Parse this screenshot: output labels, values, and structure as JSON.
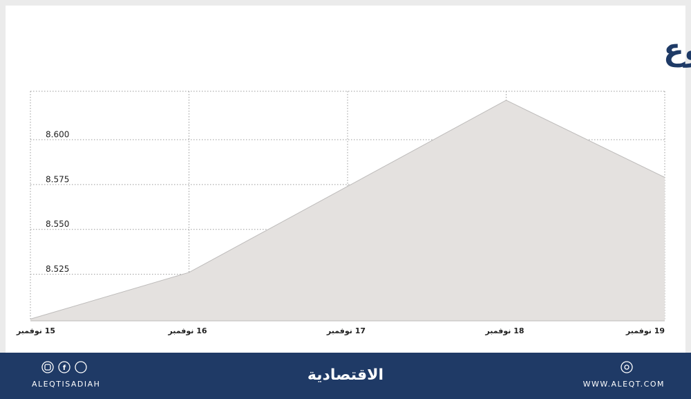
{
  "chart_data": {
    "type": "area",
    "title": "المؤشر في أسبوع",
    "categories": [
      "15 نوفمبر",
      "16 نوفمبر",
      "17 نوفمبر",
      "18 نوفمبر",
      "19 نوفمبر"
    ],
    "values": [
      8.5,
      8.526,
      8.574,
      8.622,
      8.579
    ],
    "color": "#e4e1df",
    "line_color": "#bdbbba",
    "ylim": [
      8.499,
      8.627
    ],
    "yticks": [
      {
        "value": 8.525,
        "label": "8.525"
      },
      {
        "value": 8.55,
        "label": "8.550"
      },
      {
        "value": 8.575,
        "label": "8.575"
      },
      {
        "value": 8.6,
        "label": "8.600"
      }
    ],
    "grid": true
  },
  "footer": {
    "handle": "ALEQTISADIAH",
    "logo": "الاقتصادية",
    "url": "WWW.ALEQT.COM"
  }
}
